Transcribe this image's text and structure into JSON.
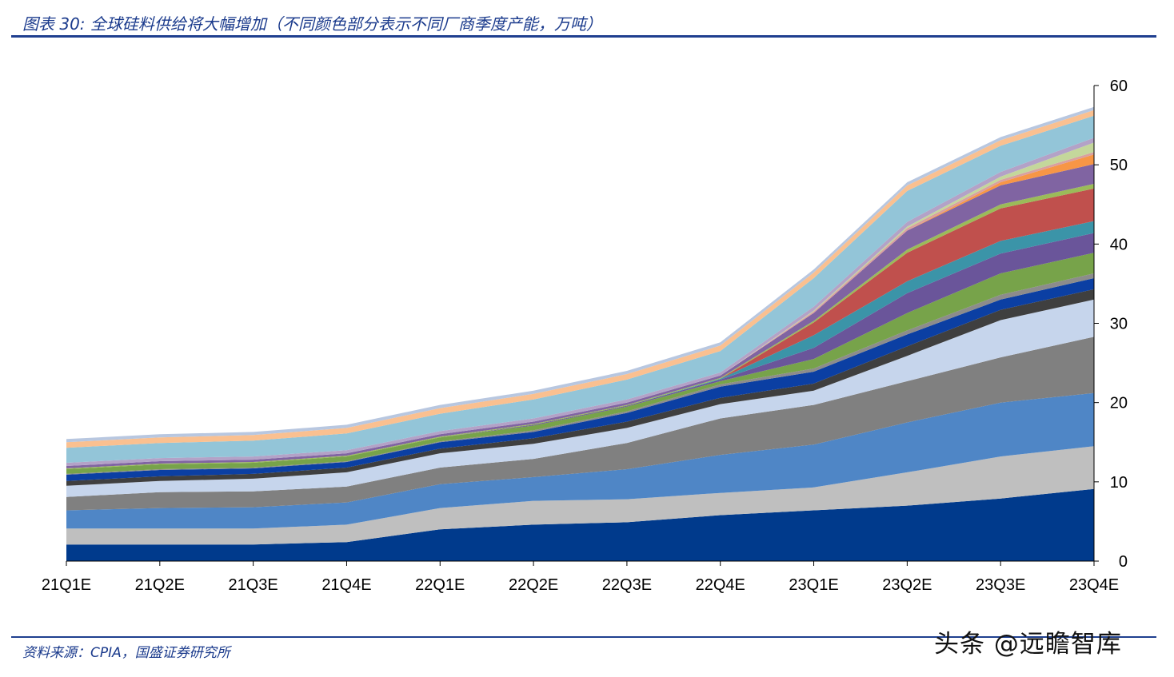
{
  "header": {
    "title": "图表 30:  全球硅料供给将大幅增加（不同颜色部分表示不同厂商季度产能，万吨）"
  },
  "footer": {
    "source": "资料来源：CPIA，国盛证券研究所"
  },
  "watermark": {
    "text": "头条 @远瞻智库"
  },
  "chart_data": {
    "type": "area",
    "stacked": true,
    "title": "全球硅料供给将大幅增加（不同颜色部分表示不同厂商季度产能，万吨）",
    "xlabel": "",
    "ylabel": "",
    "categories": [
      "21Q1E",
      "21Q2E",
      "21Q3E",
      "21Q4E",
      "22Q1E",
      "22Q2E",
      "22Q3E",
      "22Q4E",
      "23Q1E",
      "23Q2E",
      "23Q3E",
      "23Q4E"
    ],
    "ylim": [
      0,
      60
    ],
    "yticks": [
      0,
      10,
      20,
      30,
      40,
      50,
      60
    ],
    "y_axis_position": "right",
    "grid": false,
    "legend": "none",
    "series": [
      {
        "color": "#003a8c",
        "values": [
          2.1,
          2.1,
          2.1,
          2.4,
          4.0,
          4.6,
          4.9,
          5.8,
          6.4,
          7.0,
          7.9,
          9.1
        ]
      },
      {
        "color": "#bfbfbf",
        "values": [
          2.0,
          2.0,
          2.0,
          2.2,
          2.7,
          3.0,
          2.9,
          2.8,
          2.9,
          4.2,
          5.3,
          5.4
        ]
      },
      {
        "color": "#4f86c6",
        "values": [
          2.3,
          2.6,
          2.7,
          2.8,
          3.0,
          3.0,
          3.8,
          4.8,
          5.4,
          6.3,
          6.8,
          6.7
        ]
      },
      {
        "color": "#808080",
        "values": [
          1.7,
          2.0,
          2.0,
          2.0,
          2.1,
          2.3,
          3.3,
          4.6,
          5.0,
          5.2,
          5.7,
          7.1
        ]
      },
      {
        "color": "#c6d5ec",
        "values": [
          1.4,
          1.4,
          1.6,
          1.8,
          1.8,
          1.9,
          1.9,
          1.8,
          1.8,
          3.2,
          4.7,
          4.7
        ]
      },
      {
        "color": "#3f3f3f",
        "values": [
          0.6,
          0.6,
          0.6,
          0.6,
          0.6,
          0.7,
          0.8,
          0.8,
          0.9,
          1.2,
          1.3,
          1.3
        ]
      },
      {
        "color": "#0b3fa3",
        "values": [
          0.8,
          0.8,
          0.7,
          0.7,
          0.8,
          0.8,
          1.1,
          1.4,
          1.5,
          1.5,
          1.3,
          1.4
        ]
      },
      {
        "color": "#8c8c8c",
        "values": [
          0.1,
          0.1,
          0.1,
          0.1,
          0.1,
          0.2,
          0.2,
          0.3,
          0.4,
          0.5,
          0.6,
          0.6
        ]
      },
      {
        "color": "#77a34a",
        "values": [
          0.6,
          0.6,
          0.6,
          0.6,
          0.5,
          0.6,
          0.6,
          0.4,
          1.2,
          2.2,
          2.7,
          2.6
        ]
      },
      {
        "color": "#6a559a",
        "values": [
          0.0,
          0.0,
          0.0,
          0.0,
          0.0,
          0.1,
          0.1,
          0.2,
          1.4,
          2.5,
          2.5,
          2.5
        ]
      },
      {
        "color": "#3b94a8",
        "values": [
          0.0,
          0.0,
          0.0,
          0.0,
          0.0,
          0.0,
          0.0,
          0.1,
          1.6,
          1.5,
          1.6,
          1.5
        ]
      },
      {
        "color": "#c0504d",
        "values": [
          0.0,
          0.0,
          0.0,
          0.0,
          0.0,
          0.0,
          0.0,
          0.0,
          1.6,
          3.6,
          4.1,
          4.1
        ]
      },
      {
        "color": "#9bbb59",
        "values": [
          0.1,
          0.1,
          0.1,
          0.1,
          0.1,
          0.1,
          0.1,
          0.1,
          0.2,
          0.4,
          0.5,
          0.6
        ]
      },
      {
        "color": "#8064a2",
        "values": [
          0.3,
          0.3,
          0.3,
          0.3,
          0.3,
          0.3,
          0.3,
          0.3,
          1.0,
          2.4,
          2.4,
          2.5
        ]
      },
      {
        "color": "#f79646",
        "values": [
          0.0,
          0.0,
          0.0,
          0.0,
          0.0,
          0.0,
          0.0,
          0.0,
          0.0,
          0.0,
          0.4,
          1.2
        ]
      },
      {
        "color": "#d9a0a0",
        "values": [
          0.0,
          0.0,
          0.0,
          0.0,
          0.0,
          0.0,
          0.0,
          0.0,
          0.2,
          0.3,
          0.3,
          0.3
        ]
      },
      {
        "color": "#c4d79b",
        "values": [
          0.0,
          0.0,
          0.0,
          0.0,
          0.0,
          0.0,
          0.0,
          0.0,
          0.1,
          0.2,
          0.4,
          1.2
        ]
      },
      {
        "color": "#b3a2c7",
        "values": [
          0.4,
          0.4,
          0.4,
          0.4,
          0.4,
          0.4,
          0.4,
          0.4,
          0.5,
          0.6,
          0.6,
          0.6
        ]
      },
      {
        "color": "#93c5d8",
        "values": [
          1.9,
          1.9,
          2.0,
          2.1,
          2.2,
          2.4,
          2.5,
          2.7,
          3.6,
          3.9,
          3.3,
          2.8
        ]
      },
      {
        "color": "#fac090",
        "values": [
          0.7,
          0.7,
          0.7,
          0.7,
          0.7,
          0.7,
          0.7,
          0.7,
          0.7,
          0.7,
          0.7,
          0.7
        ]
      },
      {
        "color": "#b8c7e0",
        "values": [
          0.4,
          0.4,
          0.4,
          0.4,
          0.4,
          0.4,
          0.4,
          0.4,
          0.4,
          0.4,
          0.4,
          0.4
        ]
      }
    ]
  }
}
